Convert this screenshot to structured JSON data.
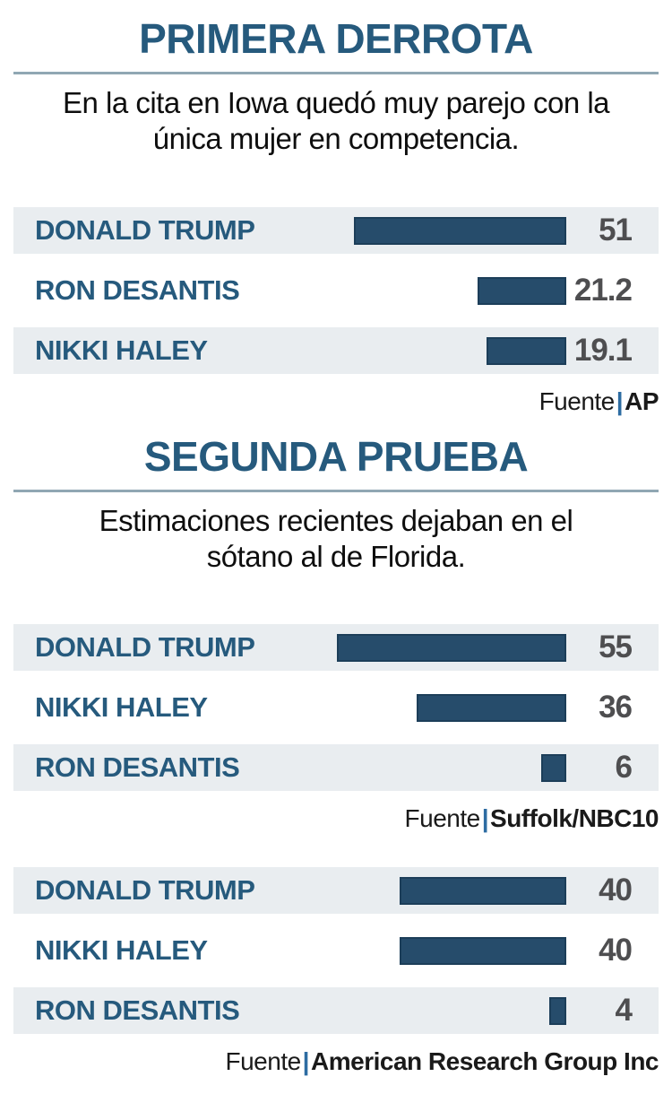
{
  "styles": {
    "accent_blue": "#265a7d",
    "bar_fill": "#264c6b",
    "bar_border": "#1c3e59",
    "row_background": "#e9edf0",
    "value_gray": "#4e4e50",
    "divider_gray_blue": "#90a7b3",
    "source_pipe_blue": "#2d6ca2"
  },
  "chart_data": [
    {
      "type": "bar",
      "orientation": "horizontal",
      "title": "PRIMERA DERROTA",
      "subtitle_lines": [
        "En la cita en Iowa quedó muy parejo con la",
        "única mujer en competencia."
      ],
      "categories": [
        "DONALD TRUMP",
        "RON DESANTIS",
        "NIKKI HALEY"
      ],
      "values": [
        51,
        21.2,
        19.1
      ],
      "display_values": [
        "51",
        "21.2",
        "19.1"
      ],
      "xlim": [
        0,
        56
      ],
      "grid": false,
      "legend": false,
      "source_label": "Fuente",
      "source_separator": "|",
      "source": "AP"
    },
    {
      "type": "bar",
      "orientation": "horizontal",
      "title": "SEGUNDA PRUEBA",
      "subtitle_lines": [
        "Estimaciones recientes dejaban en el",
        "sótano al de Florida."
      ],
      "categories": [
        "DONALD TRUMP",
        "NIKKI HALEY",
        "RON DESANTIS"
      ],
      "values": [
        55,
        36,
        6
      ],
      "display_values": [
        "55",
        "36",
        "6"
      ],
      "xlim": [
        0,
        56
      ],
      "grid": false,
      "legend": false,
      "source_label": "Fuente",
      "source_separator": "|",
      "source": "Suffolk/NBC10"
    },
    {
      "type": "bar",
      "orientation": "horizontal",
      "title": "",
      "subtitle_lines": [],
      "categories": [
        "DONALD TRUMP",
        "NIKKI HALEY",
        "RON DESANTIS"
      ],
      "values": [
        40,
        40,
        4
      ],
      "display_values": [
        "40",
        "40",
        "4"
      ],
      "xlim": [
        0,
        56
      ],
      "grid": false,
      "legend": false,
      "source_label": "Fuente",
      "source_separator": "|",
      "source": "American Research Group Inc"
    }
  ]
}
